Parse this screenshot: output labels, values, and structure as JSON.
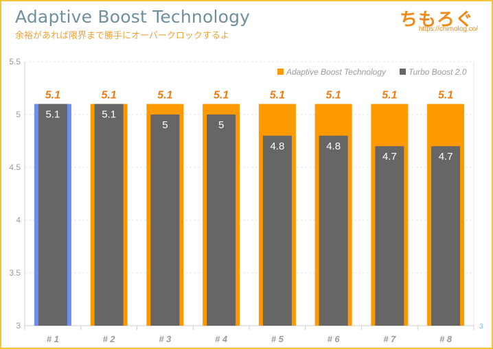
{
  "header": {
    "title": "Adaptive Boost Technology",
    "subtitle": "余裕があれば限界まで勝手にオーバークロックするよ",
    "logo": "ちもろぐ",
    "site_url": "https://chimolog.co/"
  },
  "chart_data": {
    "type": "bar",
    "categories": [
      "#1",
      "#2",
      "#3",
      "#4",
      "#5",
      "#6",
      "#7",
      "#8"
    ],
    "series": [
      {
        "name": "Adaptive Boost Technology",
        "values": [
          5.1,
          5.1,
          5.1,
          5.1,
          5.1,
          5.1,
          5.1,
          5.1
        ],
        "color": "#ff9900"
      },
      {
        "name": "Turbo Boost 2.0",
        "values": [
          5.1,
          5.1,
          5.0,
          5.0,
          4.8,
          4.8,
          4.7,
          4.7
        ],
        "color": "#666666"
      }
    ],
    "highlight_color": "#6f8ff0",
    "highlight_index": 0,
    "ylim": [
      3,
      5.5
    ],
    "yticks": [
      "3",
      "3.5",
      "4",
      "4.5",
      "5",
      "5.5"
    ],
    "right_axis_label": "3",
    "legend_position": "top-right",
    "grid": true
  }
}
